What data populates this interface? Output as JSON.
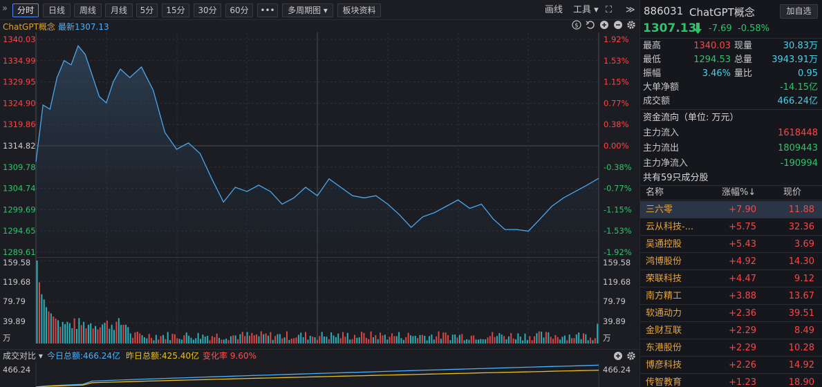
{
  "toolbar": {
    "tabs": [
      "分时",
      "日线",
      "周线",
      "月线",
      "5分",
      "15分",
      "30分",
      "60分",
      "•••",
      "多周期图 ▾",
      "板块资料"
    ],
    "right": [
      "画线",
      "工具 ▾",
      "⛶",
      "≫"
    ]
  },
  "chart_header": {
    "name": "ChatGPT概念",
    "latest_label": "最新",
    "latest_value": "1307.13"
  },
  "quote": {
    "code": "886031",
    "name": "ChatGPT概念",
    "add_button": "加自选",
    "price": "1307.13",
    "change": "-7.69",
    "pct": "-0.58%",
    "arrow_color": "#2ec46a"
  },
  "stats": [
    {
      "l1": "最高",
      "v1": "1340.03",
      "c1": "red",
      "l2": "现量",
      "v2": "30.83万",
      "c2": "cyan"
    },
    {
      "l1": "最低",
      "v1": "1294.53",
      "c1": "green",
      "l2": "总量",
      "v2": "3943.91万",
      "c2": "cyan"
    },
    {
      "l1": "振幅",
      "v1": "3.46%",
      "c1": "cyan",
      "l2": "量比",
      "v2": "0.95",
      "c2": "cyan"
    }
  ],
  "big_order": {
    "label": "大单净额",
    "value": "-14.15亿"
  },
  "turnover": {
    "label": "成交额",
    "value": "466.24亿"
  },
  "fund_flow": {
    "title": "资金流向（单位: 万元）",
    "items": [
      {
        "label": "主力流入",
        "value": "1618448",
        "color": "red"
      },
      {
        "label": "主力流出",
        "value": "1809443",
        "color": "green"
      },
      {
        "label": "主力净流入",
        "value": "-190994",
        "color": "green"
      }
    ]
  },
  "constituents": {
    "title": "共有59只成分股",
    "headers": {
      "name": "名称",
      "chg": "涨幅%↓",
      "price": "现价"
    },
    "rows": [
      {
        "name": "三六零",
        "chg": "+7.90",
        "price": "11.88"
      },
      {
        "name": "云从科技-...",
        "chg": "+5.75",
        "price": "32.36"
      },
      {
        "name": "吴通控股",
        "chg": "+5.43",
        "price": "3.69"
      },
      {
        "name": "鸿博股份",
        "chg": "+4.92",
        "price": "14.30"
      },
      {
        "name": "荣联科技",
        "chg": "+4.47",
        "price": "9.12"
      },
      {
        "name": "南方精工",
        "chg": "+3.88",
        "price": "13.67"
      },
      {
        "name": "软通动力",
        "chg": "+2.36",
        "price": "39.51"
      },
      {
        "name": "金财互联",
        "chg": "+2.29",
        "price": "8.49"
      },
      {
        "name": "东港股份",
        "chg": "+2.29",
        "price": "10.28"
      },
      {
        "name": "博彦科技",
        "chg": "+2.26",
        "price": "14.92"
      },
      {
        "name": "传智教育",
        "chg": "+1.23",
        "price": "18.90"
      }
    ]
  },
  "ratio_bar": {
    "title": "成交对比 ▾",
    "today": "今日总额:466.24亿",
    "yesterday": "昨日总额:425.40亿",
    "rate": "变化率 9.60%"
  },
  "chart_data": {
    "type": "line",
    "price_axis": [
      "1340.03",
      "1334.99",
      "1329.95",
      "1324.90",
      "1319.86",
      "1314.82",
      "1309.78",
      "1304.74",
      "1299.69",
      "1294.65",
      "1289.61"
    ],
    "pct_axis": [
      "1.92%",
      "1.53%",
      "1.15%",
      "0.77%",
      "0.38%",
      "0.00%",
      "-0.38%",
      "-0.77%",
      "-1.15%",
      "-1.53%",
      "-1.92%"
    ],
    "ylim": [
      1289.61,
      1340.03
    ],
    "prev_close": 1314.82,
    "x": [
      0,
      3,
      6,
      9,
      12,
      15,
      18,
      21,
      24,
      27,
      30,
      33,
      36,
      40,
      45,
      50,
      55,
      60,
      65,
      70,
      75,
      80,
      85,
      90,
      95,
      100,
      105,
      110,
      115,
      120,
      125,
      130,
      135,
      140,
      145,
      150,
      155,
      160,
      165,
      170,
      175,
      180,
      185,
      190,
      195,
      200,
      205,
      210,
      215,
      220,
      225,
      230,
      235,
      240
    ],
    "price": [
      1311.0,
      1324.5,
      1323.5,
      1331.0,
      1335.0,
      1334.0,
      1338.5,
      1336.5,
      1331.5,
      1326.5,
      1325.0,
      1330.0,
      1333.0,
      1331.0,
      1333.5,
      1328.0,
      1318.0,
      1314.0,
      1315.5,
      1313.0,
      1307.0,
      1301.5,
      1305.0,
      1304.0,
      1305.5,
      1304.0,
      1301.0,
      1302.5,
      1305.0,
      1303.0,
      1307.0,
      1305.0,
      1303.0,
      1302.5,
      1303.0,
      1301.0,
      1298.5,
      1295.5,
      1298.0,
      1299.0,
      1300.5,
      1302.0,
      1300.0,
      1301.0,
      1297.5,
      1295.0,
      1295.0,
      1294.6,
      1297.5,
      1300.5,
      1302.5,
      1304.0,
      1305.5,
      1307.13
    ],
    "volume_axis": [
      "159.58",
      "119.68",
      "79.79",
      "39.89",
      "万"
    ],
    "volume_ylim": [
      0,
      160
    ],
    "volume_prefix": [
      160,
      118,
      95,
      85,
      70,
      62,
      58,
      52,
      48,
      45
    ],
    "ratio_axis": "466.24",
    "today_total": 466.24,
    "yesterday_total": 425.4
  }
}
